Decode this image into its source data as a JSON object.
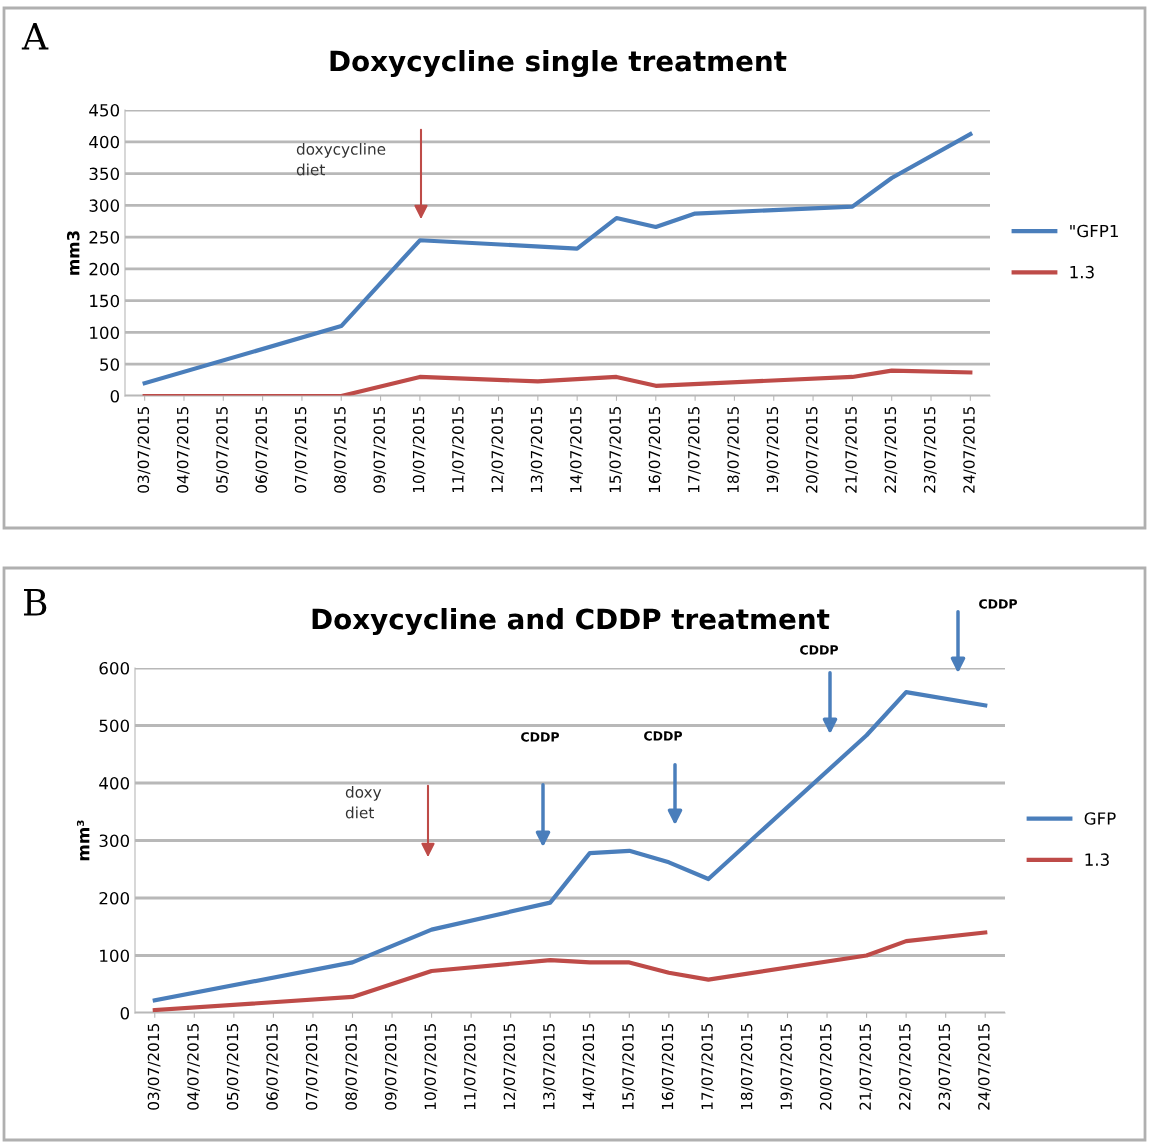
{
  "chart_data": [
    {
      "type": "line",
      "title": "Doxycycline single treatment",
      "ylabel": "mm3",
      "categories": [
        "03/07/2015",
        "04/07/2015",
        "05/07/2015",
        "06/07/2015",
        "07/07/2015",
        "08/07/2015",
        "09/07/2015",
        "10/07/2015",
        "11/07/2015",
        "12/07/2015",
        "13/07/2015",
        "14/07/2015",
        "15/07/2015",
        "16/07/2015",
        "17/07/2015",
        "18/07/2015",
        "19/07/2015",
        "20/07/2015",
        "21/07/2015",
        "22/07/2015",
        "23/07/2015",
        "24/07/2015"
      ],
      "series": [
        {
          "name": "\"GFP1",
          "color": "#4a7ebb",
          "values": [
            20,
            null,
            null,
            null,
            null,
            110,
            null,
            245,
            null,
            null,
            null,
            232,
            280,
            266,
            287,
            null,
            null,
            null,
            298,
            343,
            null,
            412
          ]
        },
        {
          "name": "1.3",
          "color": "#be4b48",
          "values": [
            0,
            null,
            null,
            null,
            null,
            0,
            null,
            30,
            null,
            null,
            23,
            null,
            30,
            16,
            null,
            null,
            null,
            null,
            30,
            40,
            null,
            37
          ]
        }
      ],
      "ylim": [
        0,
        450
      ],
      "yticks": [
        0,
        50,
        100,
        150,
        200,
        250,
        300,
        350,
        400,
        450
      ],
      "grid": "y",
      "legend": "right",
      "marker": "none",
      "line_style": "solid",
      "annotations": [
        "A",
        "doxycycline\ndiet"
      ]
    },
    {
      "type": "line",
      "title": "Doxycycline and CDDP treatment",
      "ylabel": "mm³",
      "categories": [
        "03/07/2015",
        "04/07/2015",
        "05/07/2015",
        "06/07/2015",
        "07/07/2015",
        "08/07/2015",
        "09/07/2015",
        "10/07/2015",
        "11/07/2015",
        "12/07/2015",
        "13/07/2015",
        "14/07/2015",
        "15/07/2015",
        "16/07/2015",
        "17/07/2015",
        "18/07/2015",
        "19/07/2015",
        "20/07/2015",
        "21/07/2015",
        "22/07/2015",
        "23/07/2015",
        "24/07/2015"
      ],
      "series": [
        {
          "name": "GFP",
          "color": "#4a7ebb",
          "values": [
            22,
            null,
            null,
            null,
            null,
            88,
            null,
            145,
            null,
            null,
            192,
            278,
            282,
            262,
            233,
            null,
            null,
            null,
            483,
            558,
            null,
            535
          ]
        },
        {
          "name": "1.3",
          "color": "#be4b48",
          "values": [
            5,
            null,
            null,
            null,
            null,
            28,
            null,
            73,
            null,
            null,
            92,
            88,
            88,
            70,
            58,
            null,
            null,
            null,
            100,
            125,
            null,
            140
          ]
        }
      ],
      "ylim": [
        0,
        600
      ],
      "yticks": [
        0,
        100,
        200,
        300,
        400,
        500,
        600
      ],
      "grid": "y",
      "legend": "right",
      "marker": "none",
      "line_style": "solid",
      "annotations": [
        "B",
        "doxy\ndiet",
        "CDDP",
        "CDDP",
        "CDDP",
        "CDDP"
      ]
    }
  ]
}
